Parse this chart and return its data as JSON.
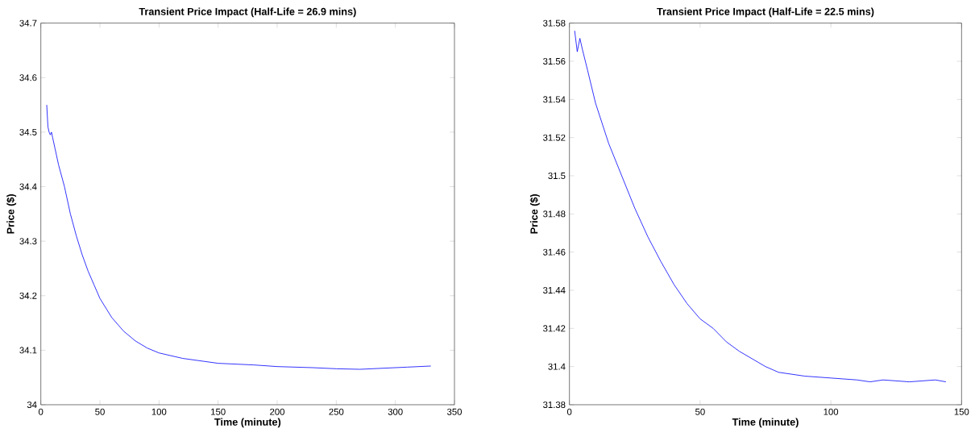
{
  "chart_data": [
    {
      "type": "line",
      "title": "Transient Price Impact (Half-Life = 26.9 mins)",
      "xlabel": "Time (minute)",
      "ylabel": "Price ($)",
      "xlim": [
        0,
        350
      ],
      "ylim": [
        34,
        34.7
      ],
      "xticks": [
        0,
        50,
        100,
        150,
        200,
        250,
        300,
        350
      ],
      "yticks": [
        34,
        34.1,
        34.2,
        34.3,
        34.4,
        34.5,
        34.6,
        34.7
      ],
      "series": [
        {
          "color": "#0000ff",
          "x": [
            5,
            6,
            7,
            8,
            9,
            10,
            12,
            15,
            20,
            25,
            30,
            35,
            40,
            45,
            50,
            60,
            70,
            80,
            90,
            100,
            120,
            150,
            180,
            200,
            230,
            250,
            270,
            290,
            310,
            330
          ],
          "values": [
            34.55,
            34.51,
            34.5,
            34.495,
            34.5,
            34.49,
            34.47,
            34.44,
            34.4,
            34.35,
            34.31,
            34.275,
            34.245,
            34.22,
            34.195,
            34.16,
            34.135,
            34.117,
            34.104,
            34.095,
            34.085,
            34.076,
            34.073,
            34.07,
            34.068,
            34.066,
            34.065,
            34.067,
            34.069,
            34.071
          ]
        }
      ]
    },
    {
      "type": "line",
      "title": "Transient Price Impact (Half-Life = 22.5 mins)",
      "xlabel": "Time (minute)",
      "ylabel": "Price ($)",
      "xlim": [
        0,
        150
      ],
      "ylim": [
        31.38,
        31.58
      ],
      "xticks": [
        0,
        50,
        100,
        150
      ],
      "yticks": [
        31.38,
        31.4,
        31.42,
        31.44,
        31.46,
        31.48,
        31.5,
        31.52,
        31.54,
        31.56,
        31.58
      ],
      "series": [
        {
          "color": "#0000ff",
          "x": [
            2,
            3,
            4,
            5,
            7,
            10,
            15,
            20,
            25,
            30,
            35,
            40,
            45,
            50,
            55,
            60,
            65,
            70,
            75,
            80,
            90,
            100,
            110,
            115,
            120,
            130,
            140,
            144
          ],
          "values": [
            31.576,
            31.565,
            31.572,
            31.566,
            31.555,
            31.538,
            31.517,
            31.5,
            31.483,
            31.468,
            31.455,
            31.443,
            31.433,
            31.425,
            31.42,
            31.413,
            31.408,
            31.404,
            31.4,
            31.397,
            31.395,
            31.394,
            31.393,
            31.392,
            31.393,
            31.392,
            31.393,
            31.392
          ]
        }
      ]
    }
  ]
}
